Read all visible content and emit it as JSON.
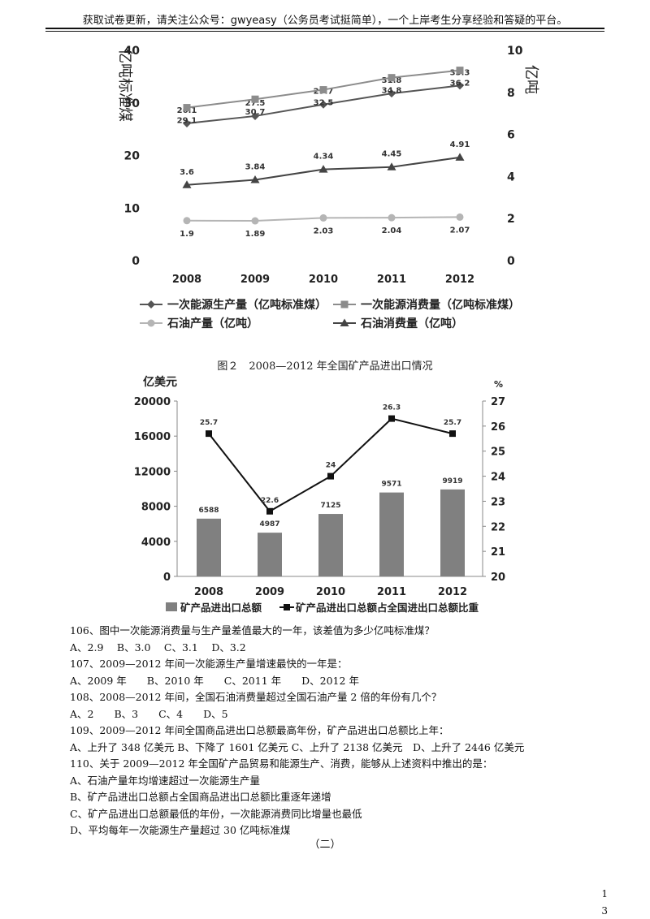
{
  "header": "获取试卷更新，请关注公众号：gwyeasy（公务员考试挺简单），一个上岸考生分享经验和答疑的平台。",
  "figure2_caption": "图２　2008—2012 年全国矿产品进出口情况",
  "chart_data": [
    {
      "type": "line",
      "title": "",
      "categories": [
        "2008",
        "2009",
        "2010",
        "2011",
        "2012"
      ],
      "ylabel_left": "亿吨标准煤",
      "ylabel_right": "亿吨",
      "ylim_left": [
        0,
        40
      ],
      "yticks_left": [
        "0",
        "10",
        "20",
        "30",
        "40"
      ],
      "ylim_right": [
        0,
        10
      ],
      "yticks_right": [
        "0",
        "2",
        "4",
        "6",
        "8",
        "10"
      ],
      "legend_placement": "bottom",
      "series": [
        {
          "name": "一次能源生产量（亿吨标准煤）",
          "axis": "left",
          "marker": "diamond",
          "color": "#555555",
          "values": [
            26.1,
            27.5,
            29.7,
            31.8,
            33.3
          ],
          "labels": [
            "26.1",
            "27.5",
            "29.7",
            "31.8",
            "33.3"
          ]
        },
        {
          "name": "一次能源消费量（亿吨标准煤）",
          "axis": "left",
          "marker": "square",
          "color": "#8c8c8c",
          "values": [
            29.1,
            30.7,
            32.5,
            34.8,
            36.2
          ],
          "labels": [
            "29.1",
            "30.7",
            "32.5",
            "34.8",
            "36.2"
          ]
        },
        {
          "name": "石油产量（亿吨）",
          "axis": "right",
          "marker": "circle",
          "color": "#b5b5b5",
          "values": [
            1.9,
            1.89,
            2.03,
            2.04,
            2.07
          ],
          "labels": [
            "1.9",
            "1.89",
            "2.03",
            "2.04",
            "2.07"
          ]
        },
        {
          "name": "石油消费量（亿吨）",
          "axis": "right",
          "marker": "triangle",
          "color": "#444444",
          "values": [
            3.6,
            3.84,
            4.34,
            4.45,
            4.91
          ],
          "labels": [
            "3.6",
            "3.84",
            "4.34",
            "4.45",
            "4.91"
          ]
        }
      ]
    },
    {
      "type": "bar",
      "title": "",
      "categories": [
        "2008",
        "2009",
        "2010",
        "2011",
        "2012"
      ],
      "ylabel_left": "亿美元",
      "ylabel_right": "%",
      "ylim_left": [
        0,
        20000
      ],
      "yticks_left": [
        "0",
        "4000",
        "8000",
        "12000",
        "16000",
        "20000"
      ],
      "ylim_right": [
        20,
        27
      ],
      "yticks_right": [
        "20",
        "21",
        "22",
        "23",
        "24",
        "25",
        "26",
        "27"
      ],
      "legend_placement": "bottom",
      "series": [
        {
          "name": "矿产品进出口总额",
          "kind": "bar",
          "axis": "left",
          "color": "#808080",
          "values": [
            6588,
            4987,
            7125,
            9571,
            9919
          ],
          "labels": [
            "6588",
            "4987",
            "7125",
            "9571",
            "9919"
          ]
        },
        {
          "name": "矿产品进出口总额占全国进出口总额比重",
          "kind": "line",
          "axis": "right",
          "color": "#111111",
          "values": [
            25.7,
            22.6,
            24,
            26.3,
            25.7
          ],
          "labels": [
            "25.7",
            "22.6",
            "24",
            "26.3",
            "25.7"
          ]
        }
      ]
    }
  ],
  "questions": [
    "106、图中一次能源消费量与生产量差值最大的一年，该差值为多少亿吨标准煤？",
    "A、2.9　 B、3.0　 C、3.1　 D、3.2",
    "107、2009—2012 年间一次能源生产量增速最快的一年是：",
    "A、2009 年　　B、2010 年　　C、2011 年　　D、2012 年",
    "108、2008—2012 年间，全国石油消费量超过全国石油产量 2 倍的年份有几个？",
    "A、2　　B、3　　C、4　　D、5",
    "109、2009—2012 年间全国商品进出口总额最高年份，矿产品进出口总额比上年：",
    "A、上升了 348 亿美元 B、下降了 1601 亿美元 C、上升了 2138 亿美元　D、上升了 2446 亿美元",
    "110、关于 2009—2012 年全国矿产品贸易和能源生产、消费，能够从上述资料中推出的是：",
    "A、石油产量年均增速超过一次能源生产量",
    "B、矿产品进出口总额占全国商品进出口总额比重逐年递增",
    "C、矿产品进出口总额最低的年份，一次能源消费同比增量也最低",
    "D、平均每年一次能源生产量超过 30 亿吨标准煤"
  ],
  "section_mark": "（二）",
  "page_numbers": [
    "1",
    "3"
  ]
}
